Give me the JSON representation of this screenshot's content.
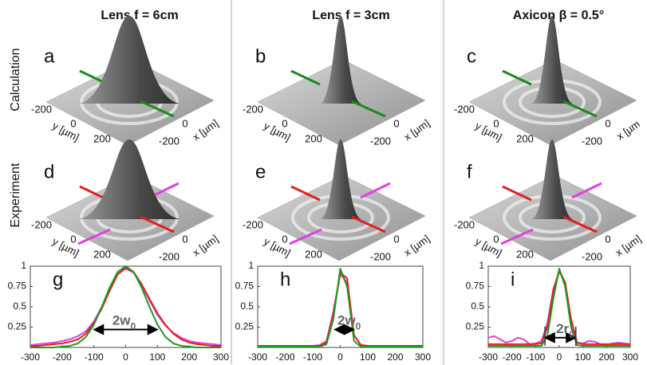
{
  "columns": [
    "Lens f = 6cm",
    "Lens f = 3cm",
    "Axicon β = 0.5°"
  ],
  "rows": [
    "Calculation",
    "Experiment"
  ],
  "panels": [
    {
      "letter": "a",
      "y_ticks": [
        "-200",
        "0",
        "200"
      ],
      "x_ticks": [
        "0",
        "-200"
      ],
      "y_label": "y [µm]",
      "x_label": "x [µm]",
      "line_colors": [
        "#1a8a1a",
        "#1a8a1a"
      ]
    },
    {
      "letter": "b",
      "y_ticks": [
        "-200",
        "0",
        "200"
      ],
      "x_ticks": [
        "0",
        "-200"
      ],
      "y_label": "y [µm]",
      "x_label": "x [µm]",
      "line_colors": [
        "#1a8a1a",
        "#1a8a1a"
      ]
    },
    {
      "letter": "c",
      "y_ticks": [
        "-200",
        "0",
        "200"
      ],
      "x_ticks": [
        "0",
        "-200"
      ],
      "y_label": "y [µm]",
      "x_label": "x [µm",
      "line_colors": [
        "#1a8a1a",
        "#1a8a1a"
      ]
    },
    {
      "letter": "d",
      "y_ticks": [
        "-200",
        "0",
        "200"
      ],
      "x_ticks": [
        "0",
        "-200"
      ],
      "y_label": "y [µm]",
      "x_label": "x [µm]",
      "line_colors": [
        "#e02020",
        "#e040e0"
      ]
    },
    {
      "letter": "e",
      "y_ticks": [
        "-200",
        "0",
        "200"
      ],
      "x_ticks": [
        "0",
        "-200"
      ],
      "y_label": "y [µm]",
      "x_label": "x [µm]",
      "line_colors": [
        "#e02020",
        "#e040e0"
      ]
    },
    {
      "letter": "f",
      "y_ticks": [
        "-200",
        "0",
        "200"
      ],
      "x_ticks": [
        "0",
        "-200"
      ],
      "y_label": "y [µm]",
      "x_label": "x [µm]",
      "line_colors": [
        "#e02020",
        "#e040e0"
      ]
    }
  ],
  "chart_data": [
    {
      "type": "line",
      "label": "g",
      "x": [
        -300,
        -275,
        -250,
        -225,
        -200,
        -175,
        -150,
        -125,
        -100,
        -75,
        -50,
        -25,
        0,
        25,
        50,
        75,
        100,
        125,
        150,
        175,
        200,
        225,
        250,
        275,
        300
      ],
      "series": [
        {
          "color": "#e040e0",
          "values": [
            0.03,
            0.04,
            0.05,
            0.06,
            0.08,
            0.1,
            0.14,
            0.2,
            0.32,
            0.5,
            0.72,
            0.9,
            0.97,
            0.92,
            0.77,
            0.58,
            0.4,
            0.27,
            0.18,
            0.12,
            0.08,
            0.06,
            0.05,
            0.04,
            0.03
          ]
        },
        {
          "color": "#e02020",
          "values": [
            0.02,
            0.02,
            0.03,
            0.04,
            0.05,
            0.07,
            0.1,
            0.17,
            0.3,
            0.48,
            0.7,
            0.9,
            0.98,
            0.93,
            0.78,
            0.6,
            0.42,
            0.28,
            0.17,
            0.1,
            0.06,
            0.04,
            0.03,
            0.02,
            0.02
          ]
        },
        {
          "color": "#1a9a1a",
          "values": [
            0,
            0,
            0,
            0,
            0.01,
            0.02,
            0.05,
            0.13,
            0.28,
            0.5,
            0.74,
            0.93,
            1,
            0.93,
            0.74,
            0.5,
            0.28,
            0.13,
            0.05,
            0.02,
            0.01,
            0,
            0,
            0,
            0
          ]
        }
      ],
      "xlim": [
        -300,
        300
      ],
      "xticks": [
        -300,
        -200,
        -100,
        0,
        100,
        200,
        300
      ],
      "ylim": [
        0,
        1
      ],
      "yticks": [
        0.25,
        0.5,
        0.75,
        1
      ],
      "annotation": [
        "2w",
        "0"
      ],
      "annotation_span": [
        -100,
        100
      ],
      "annotation_y": 0.22
    },
    {
      "type": "line",
      "label": "h",
      "x": [
        -300,
        -275,
        -250,
        -225,
        -200,
        -175,
        -150,
        -125,
        -100,
        -75,
        -50,
        -25,
        0,
        25,
        50,
        75,
        100,
        125,
        150,
        175,
        200,
        225,
        250,
        275,
        300
      ],
      "series": [
        {
          "color": "#e040e0",
          "values": [
            0.02,
            0.02,
            0.02,
            0.02,
            0.02,
            0.02,
            0.02,
            0.02,
            0.02,
            0.03,
            0.08,
            0.45,
            0.9,
            0.8,
            0.15,
            0.03,
            0.02,
            0.02,
            0.02,
            0.02,
            0.02,
            0.02,
            0.02,
            0.02,
            0.02
          ]
        },
        {
          "color": "#e02020",
          "values": [
            0.02,
            0.02,
            0.02,
            0.02,
            0.02,
            0.02,
            0.02,
            0.02,
            0.02,
            0.02,
            0.06,
            0.4,
            0.92,
            0.85,
            0.15,
            0.03,
            0.02,
            0.02,
            0.02,
            0.02,
            0.02,
            0.02,
            0.02,
            0.02,
            0.02
          ]
        },
        {
          "color": "#1a9a1a",
          "values": [
            0.01,
            0.01,
            0.01,
            0.01,
            0.01,
            0.01,
            0.01,
            0.01,
            0.01,
            0.01,
            0.04,
            0.35,
            0.97,
            0.75,
            0.08,
            0.01,
            0.01,
            0.01,
            0.01,
            0.01,
            0.01,
            0.01,
            0.01,
            0.01,
            0.01
          ]
        }
      ],
      "xlim": [
        -300,
        300
      ],
      "xticks": [
        -300,
        -200,
        -100,
        0,
        100,
        200,
        300
      ],
      "ylim": [
        0,
        1
      ],
      "yticks": [
        0.25,
        0.5,
        0.75,
        1
      ],
      "annotation": [
        "2w",
        "0"
      ],
      "annotation_span": [
        -20,
        50
      ],
      "annotation_y": 0.22
    },
    {
      "type": "line",
      "label": "i",
      "x": [
        -300,
        -275,
        -250,
        -225,
        -200,
        -175,
        -150,
        -125,
        -100,
        -75,
        -50,
        -25,
        0,
        25,
        50,
        75,
        100,
        125,
        150,
        175,
        200,
        225,
        250,
        275,
        300
      ],
      "series": [
        {
          "color": "#e040e0",
          "values": [
            0.12,
            0.14,
            0.1,
            0.06,
            0.08,
            0.12,
            0.1,
            0.04,
            0.05,
            0.08,
            0.3,
            0.72,
            0.93,
            0.8,
            0.3,
            0.06,
            0.05,
            0.08,
            0.07,
            0.04,
            0.03,
            0.05,
            0.06,
            0.05,
            0.04
          ]
        },
        {
          "color": "#e02020",
          "values": [
            0.04,
            0.04,
            0.04,
            0.04,
            0.04,
            0.04,
            0.04,
            0.04,
            0.04,
            0.05,
            0.25,
            0.7,
            0.95,
            0.8,
            0.35,
            0.06,
            0.04,
            0.04,
            0.04,
            0.04,
            0.04,
            0.04,
            0.04,
            0.04,
            0.04
          ]
        },
        {
          "color": "#1a9a1a",
          "values": [
            0.02,
            0.02,
            0.02,
            0.02,
            0.02,
            0.02,
            0.02,
            0.02,
            0.02,
            0.02,
            0.15,
            0.6,
            0.97,
            0.75,
            0.25,
            0.03,
            0.02,
            0.02,
            0.02,
            0.02,
            0.02,
            0.02,
            0.02,
            0.02,
            0.02
          ]
        }
      ],
      "xlim": [
        -300,
        300
      ],
      "xticks": [
        -300,
        -200,
        -100,
        0,
        100,
        200,
        300
      ],
      "ylim": [
        0,
        1
      ],
      "yticks": [
        0.25,
        0.5,
        0.75,
        1
      ],
      "annotation": [
        "2r",
        "0"
      ],
      "annotation_span": [
        -60,
        70
      ],
      "annotation_y": 0.12
    }
  ]
}
